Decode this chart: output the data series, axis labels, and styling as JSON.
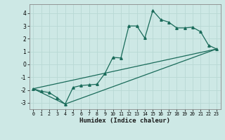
{
  "xlabel": "Humidex (Indice chaleur)",
  "xlim": [
    -0.5,
    23.5
  ],
  "ylim": [
    -3.5,
    4.7
  ],
  "xticks": [
    0,
    1,
    2,
    3,
    4,
    5,
    6,
    7,
    8,
    9,
    10,
    11,
    12,
    13,
    14,
    15,
    16,
    17,
    18,
    19,
    20,
    21,
    22,
    23
  ],
  "yticks": [
    -3,
    -2,
    -1,
    0,
    1,
    2,
    3,
    4
  ],
  "background_color": "#cde8e5",
  "grid_color": "#b8d8d4",
  "line_color": "#1a6b5a",
  "series1_x": [
    0,
    1,
    2,
    3,
    4,
    5,
    6,
    7,
    8,
    9,
    10,
    11,
    12,
    13,
    14,
    15,
    16,
    17,
    18,
    19,
    20,
    21,
    22,
    23
  ],
  "series1_y": [
    -1.9,
    -2.1,
    -2.2,
    -2.6,
    -3.1,
    -1.8,
    -1.65,
    -1.6,
    -1.55,
    -0.7,
    0.55,
    0.5,
    3.0,
    3.0,
    2.05,
    4.2,
    3.5,
    3.3,
    2.85,
    2.85,
    2.9,
    2.55,
    1.5,
    1.2
  ],
  "series2_x": [
    0,
    23
  ],
  "series2_y": [
    -1.9,
    1.2
  ],
  "series3_x": [
    0,
    4,
    23
  ],
  "series3_y": [
    -1.9,
    -3.1,
    1.2
  ]
}
